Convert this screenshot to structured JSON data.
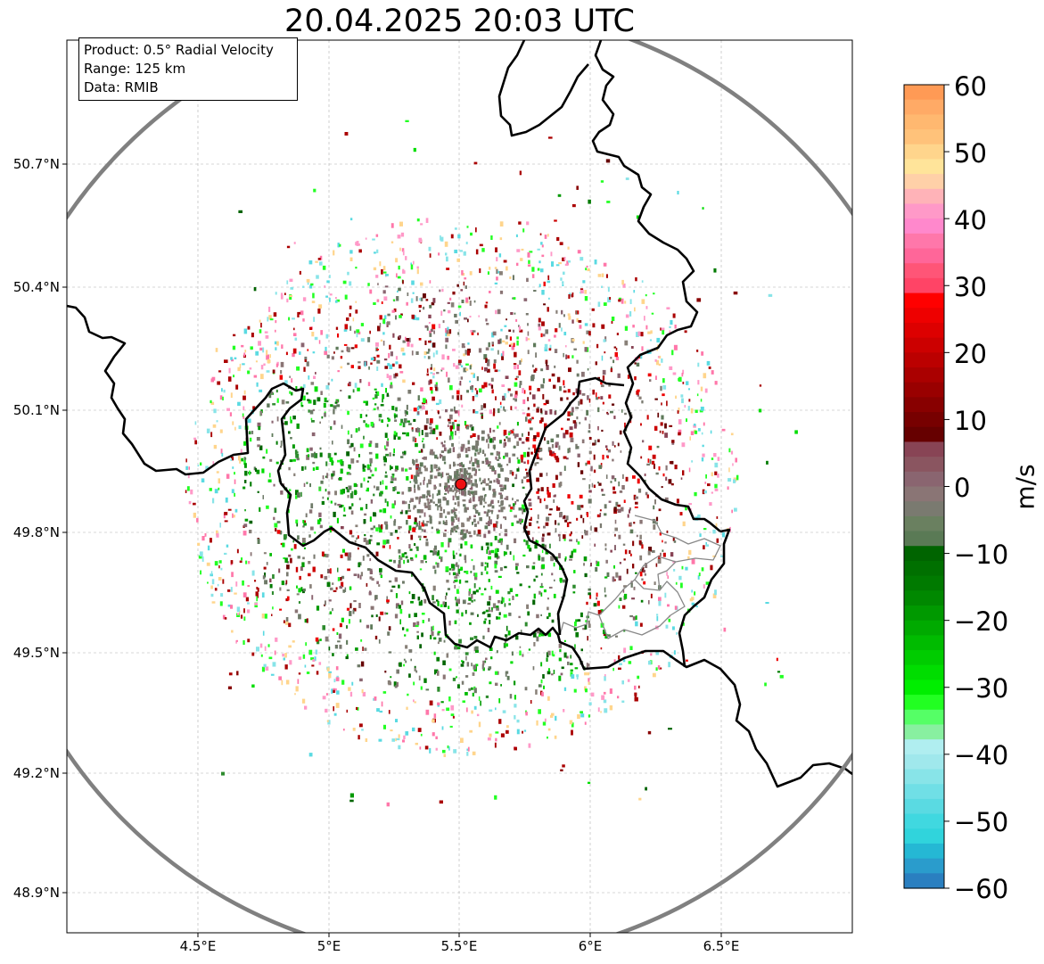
{
  "title": "20.04.2025 20:03 UTC",
  "info": {
    "product": "Product: 0.5° Radial Velocity",
    "range": "Range: 125 km",
    "data": "Data: RMIB"
  },
  "axes": {
    "lat_ticks": [
      "50.7°N",
      "50.4°N",
      "50.1°N",
      "49.8°N",
      "49.5°N",
      "49.2°N",
      "48.9°N"
    ],
    "lon_ticks": [
      "4.5°E",
      "5°E",
      "5.5°E",
      "6°E",
      "6.5°E"
    ]
  },
  "colorbar": {
    "label": "m/s",
    "ticks": [
      "60",
      "50",
      "40",
      "30",
      "20",
      "10",
      "0",
      "−10",
      "−20",
      "−30",
      "−40",
      "−50",
      "−60"
    ],
    "range": [
      -60,
      60
    ],
    "colors_top_to_bottom": [
      "#ff9a55",
      "#ffaa66",
      "#ffb870",
      "#ffc27a",
      "#ffd58c",
      "#ffe49a",
      "#ffd0a8",
      "#ffb3b8",
      "#ff99c8",
      "#ff88cc",
      "#ff77aa",
      "#ff6699",
      "#ff5577",
      "#ff4466",
      "#ff0000",
      "#ee0000",
      "#dd0000",
      "#cc0000",
      "#bb0000",
      "#aa0000",
      "#990000",
      "#880000",
      "#770000",
      "#660000",
      "#884455",
      "#8a5560",
      "#8a6570",
      "#8a7575",
      "#7a7a70",
      "#6a8060",
      "#5a7a55",
      "#006400",
      "#007000",
      "#007a00",
      "#008800",
      "#009900",
      "#00aa00",
      "#00bb00",
      "#00cc00",
      "#00dd00",
      "#00ee00",
      "#22ff22",
      "#55ff66",
      "#88f0a0",
      "#b0eef0",
      "#a0e8ec",
      "#88e4e8",
      "#70dfe6",
      "#5adae2",
      "#40d8e0",
      "#30d4dc",
      "#25b8d4",
      "#2a9ccc",
      "#2a7fc0"
    ]
  },
  "radar": {
    "site_color": "#ee1111",
    "range_ring_color": "#808080",
    "border_color": "#000000"
  }
}
